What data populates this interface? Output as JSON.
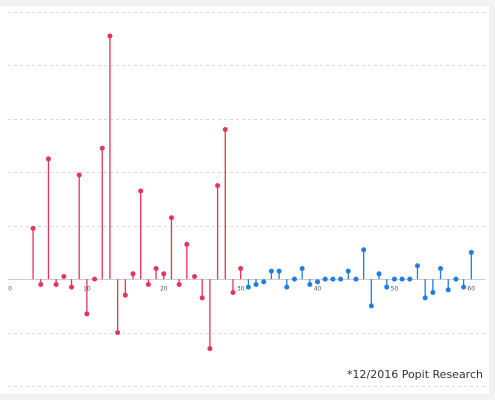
{
  "chart_data": {
    "type": "stem",
    "xlim": [
      0,
      61
    ],
    "ylim": [
      -20,
      50
    ],
    "grid": true,
    "x_ticks": [
      0,
      10,
      20,
      30,
      40,
      50,
      60
    ],
    "x_tick_labels": [
      "0",
      "10",
      "20",
      "30",
      "40",
      "50",
      "60"
    ],
    "series": [
      {
        "color": "#e8345a",
        "x": [
          3,
          4,
          5,
          6,
          7,
          8,
          9,
          10,
          11,
          12,
          13,
          14,
          15,
          16,
          17,
          18,
          19,
          20,
          21,
          22,
          23,
          24,
          25,
          26,
          27,
          28,
          29,
          30
        ],
        "values": [
          9.5,
          -1,
          22.5,
          -1,
          0.5,
          -1.5,
          19.5,
          -6.5,
          0,
          24.5,
          45.5,
          -10,
          -3,
          1,
          16.5,
          -1,
          2,
          1,
          11.5,
          -1,
          6.5,
          0.5,
          -3.5,
          -13,
          17.5,
          28,
          -2.5,
          2
        ]
      },
      {
        "color": "#1e7ee6",
        "x": [
          31,
          32,
          33,
          34,
          35,
          36,
          37,
          38,
          39,
          40,
          41,
          42,
          43,
          44,
          45,
          46,
          47,
          48,
          49,
          50,
          51,
          52,
          53,
          54,
          55,
          56,
          57,
          58,
          59,
          60
        ],
        "values": [
          -1.5,
          -1,
          -0.5,
          1.5,
          1.5,
          -1.5,
          0,
          2,
          -1,
          -0.5,
          0,
          0,
          0,
          1.5,
          0,
          5.5,
          -5,
          1,
          -1.5,
          0,
          0,
          0,
          2.5,
          -3.5,
          -2.5,
          2,
          -2,
          0,
          -1.5,
          5
        ]
      }
    ]
  },
  "footer": {
    "source": "*12/2016 Popit Research"
  }
}
